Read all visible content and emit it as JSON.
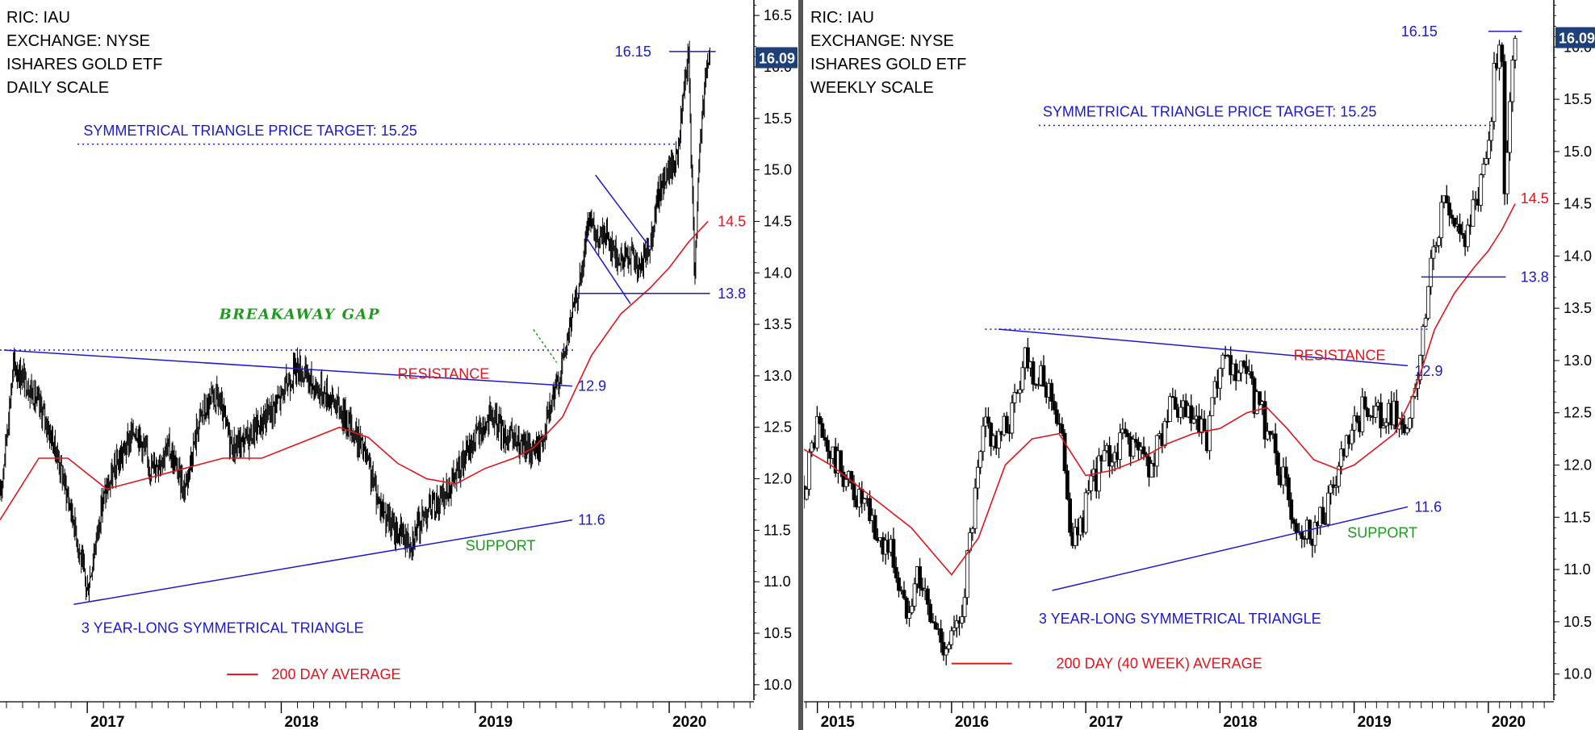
{
  "chart_data": [
    {
      "type": "line",
      "subtype": "price-chart",
      "info": [
        "RIC: IAU",
        "EXCHANGE: NYSE",
        "ISHARES GOLD ETF",
        "DAILY SCALE"
      ],
      "y_ticks": [
        10.0,
        10.5,
        11.0,
        11.5,
        12.0,
        12.5,
        13.0,
        13.5,
        14.0,
        14.5,
        15.0,
        15.5,
        16.0,
        16.5
      ],
      "ylim": [
        9.85,
        16.65
      ],
      "xlim": [
        2016.55,
        2020.42
      ],
      "x_ticks": [
        {
          "x": 2017.0,
          "label": "2017"
        },
        {
          "x": 2018.0,
          "label": "2018"
        },
        {
          "x": 2019.0,
          "label": "2019"
        },
        {
          "x": 2020.0,
          "label": "2020"
        }
      ],
      "last_price": "16.09",
      "price_series": {
        "name": "IAU",
        "x": [
          2016.55,
          2016.62,
          2016.7,
          2016.78,
          2016.85,
          2016.93,
          2017.0,
          2017.08,
          2017.17,
          2017.25,
          2017.33,
          2017.42,
          2017.5,
          2017.58,
          2017.67,
          2017.75,
          2017.83,
          2017.92,
          2018.0,
          2018.08,
          2018.17,
          2018.25,
          2018.33,
          2018.42,
          2018.5,
          2018.58,
          2018.67,
          2018.75,
          2018.83,
          2018.92,
          2019.0,
          2019.08,
          2019.17,
          2019.25,
          2019.33,
          2019.42,
          2019.47,
          2019.5,
          2019.55,
          2019.58,
          2019.63,
          2019.67,
          2019.72,
          2019.75,
          2019.8,
          2019.85,
          2019.9,
          2019.95,
          2020.0,
          2020.04,
          2020.08,
          2020.1,
          2020.13,
          2020.16,
          2020.19,
          2020.21
        ],
        "y": [
          11.8,
          13.1,
          12.9,
          12.6,
          12.2,
          11.6,
          10.9,
          11.8,
          12.2,
          12.5,
          12.1,
          12.3,
          11.9,
          12.6,
          12.8,
          12.3,
          12.4,
          12.6,
          12.8,
          13.1,
          12.9,
          12.8,
          12.6,
          12.3,
          11.8,
          11.5,
          11.4,
          11.7,
          11.8,
          12.1,
          12.4,
          12.6,
          12.4,
          12.3,
          12.3,
          12.9,
          13.3,
          13.6,
          14.0,
          14.5,
          14.3,
          14.4,
          14.2,
          14.1,
          14.2,
          14.0,
          14.3,
          14.8,
          15.0,
          15.1,
          15.8,
          16.1,
          14.0,
          15.3,
          16.0,
          16.09
        ]
      },
      "average_series": {
        "name": "200 DAY AVERAGE",
        "color": "#e0161b",
        "x": [
          2016.55,
          2016.75,
          2016.9,
          2017.1,
          2017.3,
          2017.5,
          2017.7,
          2017.9,
          2018.1,
          2018.3,
          2018.45,
          2018.6,
          2018.75,
          2018.9,
          2019.05,
          2019.2,
          2019.3,
          2019.45,
          2019.6,
          2019.75,
          2019.9,
          2020.0,
          2020.1,
          2020.2
        ],
        "y": [
          11.6,
          12.2,
          12.2,
          11.9,
          12.0,
          12.1,
          12.2,
          12.2,
          12.35,
          12.5,
          12.4,
          12.15,
          12.0,
          11.95,
          12.1,
          12.2,
          12.3,
          12.6,
          13.2,
          13.6,
          13.85,
          14.05,
          14.3,
          14.5
        ]
      },
      "lines": [
        {
          "name": "resistance-line",
          "style": "solid",
          "color": "#1a1acc",
          "x": [
            2016.57,
            2019.5
          ],
          "y": [
            13.25,
            12.9
          ]
        },
        {
          "name": "support-line",
          "style": "solid",
          "color": "#1a1acc",
          "x": [
            2016.93,
            2019.5
          ],
          "y": [
            10.78,
            11.6
          ]
        },
        {
          "name": "breakout-level-line",
          "style": "dotted",
          "color": "#1a1acc",
          "x": [
            2016.55,
            2019.52
          ],
          "y": [
            13.25,
            13.25
          ]
        },
        {
          "name": "price-target-line",
          "style": "dotted",
          "color": "#1a1acc",
          "x": [
            2016.95,
            2020.05
          ],
          "y": [
            15.25,
            15.25
          ]
        },
        {
          "name": "high-line",
          "style": "solid",
          "color": "#1a1acc",
          "x": [
            2020.0,
            2020.24
          ],
          "y": [
            16.15,
            16.15
          ]
        },
        {
          "name": "low-line",
          "style": "solid",
          "color": "#1a1acc",
          "x": [
            2019.52,
            2020.21
          ],
          "y": [
            13.8,
            13.8
          ]
        },
        {
          "name": "flag-upper-line",
          "style": "solid",
          "color": "#1a1acc",
          "x": [
            2019.62,
            2019.9
          ],
          "y": [
            14.95,
            14.25
          ]
        },
        {
          "name": "flag-lower-line",
          "style": "solid",
          "color": "#1a1acc",
          "x": [
            2019.57,
            2019.8
          ],
          "y": [
            14.35,
            13.7
          ]
        },
        {
          "name": "gap-pointer",
          "style": "dashed",
          "color": "#1f9a1f",
          "x": [
            2019.3,
            2019.42
          ],
          "y": [
            13.45,
            13.13
          ]
        }
      ],
      "labels": [
        {
          "text": "16.15",
          "x": 2019.72,
          "y": 16.15,
          "color": "blue"
        },
        {
          "text": "SYMMETRICAL TRIANGLE PRICE TARGET: 15.25",
          "x": 2016.98,
          "y": 15.38,
          "color": "blue"
        },
        {
          "text": "14.5",
          "x": 2020.25,
          "y": 14.5,
          "color": "red"
        },
        {
          "text": "13.8",
          "x": 2020.25,
          "y": 13.8,
          "color": "blue"
        },
        {
          "text": "BREAKAWAY GAP",
          "x": 2017.68,
          "y": 13.6,
          "color": "green",
          "italic": true
        },
        {
          "text": "RESISTANCE",
          "x": 2018.6,
          "y": 13.02,
          "color": "red"
        },
        {
          "text": "12.9",
          "x": 2019.53,
          "y": 12.9,
          "color": "blue"
        },
        {
          "text": "11.6",
          "x": 2019.53,
          "y": 11.6,
          "color": "blue"
        },
        {
          "text": "SUPPORT",
          "x": 2018.95,
          "y": 11.35,
          "color": "green"
        },
        {
          "text": "3 YEAR-LONG SYMMETRICAL TRIANGLE",
          "x": 2016.97,
          "y": 10.55,
          "color": "blue"
        },
        {
          "text": "200 DAY AVERAGE",
          "x": 2017.95,
          "y": 10.1,
          "color": "red"
        }
      ],
      "legend": {
        "label": "200 DAY AVERAGE",
        "x": [
          2017.72,
          2017.88
        ],
        "y": 10.1
      }
    },
    {
      "type": "line",
      "subtype": "price-chart",
      "info": [
        "RIC: IAU",
        "EXCHANGE: NYSE",
        "ISHARES GOLD ETF",
        "WEEKLY SCALE"
      ],
      "y_ticks": [
        10.0,
        10.5,
        11.0,
        11.5,
        12.0,
        12.5,
        13.0,
        13.5,
        14.0,
        14.5,
        15.0,
        15.5,
        16.0
      ],
      "ylim": [
        9.75,
        16.45
      ],
      "xlim": [
        2014.9,
        2020.47
      ],
      "x_ticks": [
        {
          "x": 2015.0,
          "label": "2015"
        },
        {
          "x": 2016.0,
          "label": "2016"
        },
        {
          "x": 2017.0,
          "label": "2017"
        },
        {
          "x": 2018.0,
          "label": "2018"
        },
        {
          "x": 2019.0,
          "label": "2019"
        },
        {
          "x": 2020.0,
          "label": "2020"
        }
      ],
      "last_price": "16.09",
      "price_series": {
        "name": "IAU",
        "x": [
          2014.9,
          2015.0,
          2015.05,
          2015.15,
          2015.25,
          2015.35,
          2015.45,
          2015.55,
          2015.65,
          2015.75,
          2015.85,
          2015.95,
          2016.05,
          2016.15,
          2016.25,
          2016.35,
          2016.45,
          2016.55,
          2016.65,
          2016.75,
          2016.85,
          2016.9,
          2017.0,
          2017.1,
          2017.2,
          2017.3,
          2017.4,
          2017.5,
          2017.6,
          2017.7,
          2017.8,
          2017.9,
          2018.0,
          2018.1,
          2018.2,
          2018.3,
          2018.4,
          2018.5,
          2018.6,
          2018.7,
          2018.8,
          2018.9,
          2019.0,
          2019.1,
          2019.2,
          2019.3,
          2019.4,
          2019.5,
          2019.55,
          2019.6,
          2019.7,
          2019.8,
          2019.9,
          2020.0,
          2020.05,
          2020.1,
          2020.12,
          2020.15,
          2020.2
        ],
        "y": [
          11.8,
          12.4,
          12.2,
          12.0,
          11.8,
          11.6,
          11.3,
          11.2,
          10.6,
          11.0,
          10.5,
          10.3,
          10.4,
          11.4,
          12.4,
          12.2,
          12.5,
          13.1,
          12.8,
          12.7,
          12.0,
          11.2,
          11.6,
          12.0,
          12.1,
          12.3,
          12.1,
          12.0,
          12.5,
          12.5,
          12.4,
          12.2,
          12.9,
          12.9,
          12.8,
          12.5,
          12.2,
          11.7,
          11.4,
          11.4,
          11.6,
          12.0,
          12.3,
          12.6,
          12.4,
          12.5,
          12.3,
          13.0,
          13.7,
          14.2,
          14.5,
          14.2,
          14.4,
          15.1,
          15.8,
          16.1,
          14.5,
          15.3,
          16.09
        ]
      },
      "average_series": {
        "name": "200 DAY (40 WEEK) AVERAGE",
        "color": "#e0161b",
        "x": [
          2014.9,
          2015.1,
          2015.3,
          2015.5,
          2015.7,
          2015.9,
          2016.0,
          2016.2,
          2016.4,
          2016.6,
          2016.8,
          2016.9,
          2017.0,
          2017.2,
          2017.4,
          2017.6,
          2017.8,
          2018.0,
          2018.2,
          2018.35,
          2018.5,
          2018.7,
          2018.9,
          2019.0,
          2019.2,
          2019.3,
          2019.45,
          2019.6,
          2019.75,
          2019.9,
          2020.0,
          2020.1,
          2020.2
        ],
        "y": [
          12.15,
          12.0,
          11.8,
          11.6,
          11.4,
          11.1,
          10.95,
          11.3,
          12.0,
          12.25,
          12.3,
          12.1,
          11.9,
          11.95,
          12.05,
          12.2,
          12.3,
          12.35,
          12.5,
          12.55,
          12.35,
          12.05,
          11.95,
          12.0,
          12.2,
          12.3,
          12.7,
          13.3,
          13.65,
          13.9,
          14.05,
          14.25,
          14.5
        ]
      },
      "lines": [
        {
          "name": "resistance-line",
          "style": "solid",
          "color": "#1a1acc",
          "x": [
            2016.35,
            2019.4
          ],
          "y": [
            13.3,
            12.95
          ]
        },
        {
          "name": "support-line",
          "style": "solid",
          "color": "#1a1acc",
          "x": [
            2016.75,
            2019.4
          ],
          "y": [
            10.8,
            11.6
          ]
        },
        {
          "name": "breakout-level-line",
          "style": "dotted",
          "color": "#1a1acc",
          "x": [
            2016.25,
            2019.55
          ],
          "y": [
            13.3,
            13.3
          ]
        },
        {
          "name": "price-target-line",
          "style": "dotted",
          "color": "#1a1acc",
          "x": [
            2016.65,
            2020.05
          ],
          "y": [
            15.25,
            15.25
          ]
        },
        {
          "name": "high-line",
          "style": "solid",
          "color": "#1a1acc",
          "x": [
            2020.0,
            2020.25
          ],
          "y": [
            16.15,
            16.15
          ]
        },
        {
          "name": "low-line",
          "style": "solid",
          "color": "#1a1acc",
          "x": [
            2019.5,
            2020.13
          ],
          "y": [
            13.8,
            13.8
          ]
        }
      ],
      "labels": [
        {
          "text": "16.15",
          "x": 2019.35,
          "y": 16.15,
          "color": "blue"
        },
        {
          "text": "SYMMETRICAL TRIANGLE PRICE TARGET: 15.25",
          "x": 2016.68,
          "y": 15.38,
          "color": "blue"
        },
        {
          "text": "14.5",
          "x": 2020.24,
          "y": 14.55,
          "color": "red"
        },
        {
          "text": "13.8",
          "x": 2020.24,
          "y": 13.8,
          "color": "blue"
        },
        {
          "text": "RESISTANCE",
          "x": 2018.55,
          "y": 13.05,
          "color": "red"
        },
        {
          "text": "12.9",
          "x": 2019.45,
          "y": 12.9,
          "color": "blue"
        },
        {
          "text": "11.6",
          "x": 2019.45,
          "y": 11.6,
          "color": "blue"
        },
        {
          "text": "SUPPORT",
          "x": 2018.95,
          "y": 11.35,
          "color": "green"
        },
        {
          "text": "3 YEAR-LONG SYMMETRICAL TRIANGLE",
          "x": 2016.65,
          "y": 10.53,
          "color": "blue"
        },
        {
          "text": "200 DAY (40 WEEK) AVERAGE",
          "x": 2016.78,
          "y": 10.1,
          "color": "red"
        }
      ],
      "legend": {
        "label": "200 DAY (40 WEEK) AVERAGE",
        "x": [
          2016.0,
          2016.45
        ],
        "y": 10.1
      }
    }
  ]
}
